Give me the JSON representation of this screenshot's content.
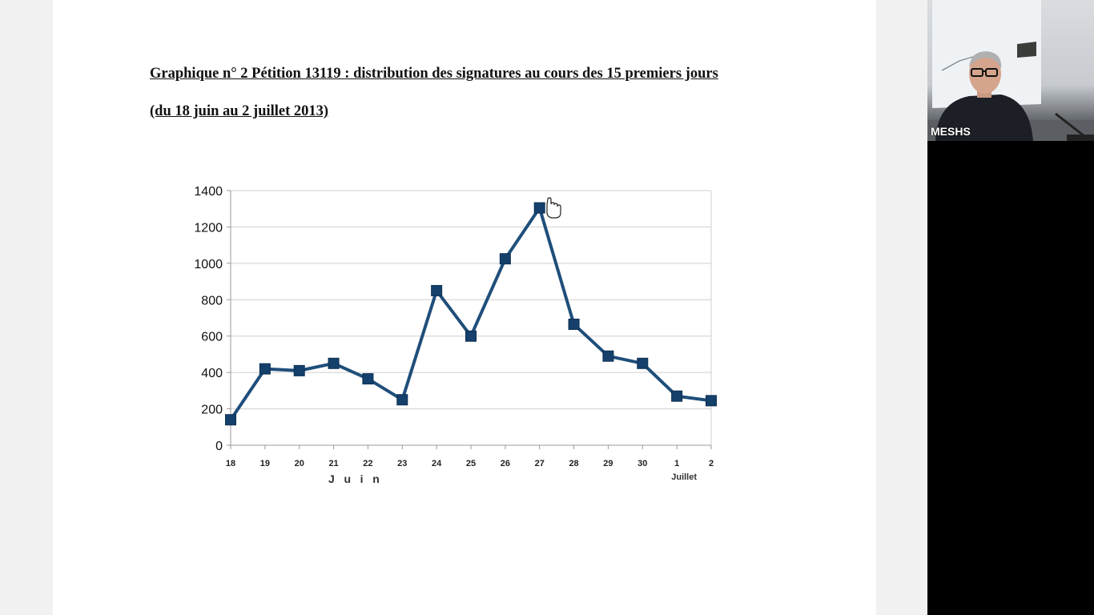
{
  "document": {
    "title": "Graphique n° 2  Pétition 13119 : distribution des signatures au cours des 15 premiers jours",
    "subtitle": "(du 18 juin au 2 juillet 2013)"
  },
  "chart_data": {
    "type": "line",
    "categories": [
      "18",
      "19",
      "20",
      "21",
      "22",
      "23",
      "24",
      "25",
      "26",
      "27",
      "28",
      "29",
      "30",
      "1",
      "2"
    ],
    "series": [
      {
        "values": [
          140,
          420,
          410,
          450,
          365,
          250,
          850,
          600,
          1025,
          1305,
          665,
          490,
          450,
          270,
          245
        ]
      }
    ],
    "ylim": [
      0,
      1400
    ],
    "yticks": [
      0,
      200,
      400,
      600,
      800,
      1000,
      1200,
      1400
    ],
    "group_labels": {
      "june": "J   u   i   n",
      "july": "Juillet"
    },
    "grid": true,
    "marker": "square",
    "line_color": "#1f4e7a",
    "marker_color": "#14406b"
  },
  "video": {
    "participant_name": "MESHS"
  }
}
